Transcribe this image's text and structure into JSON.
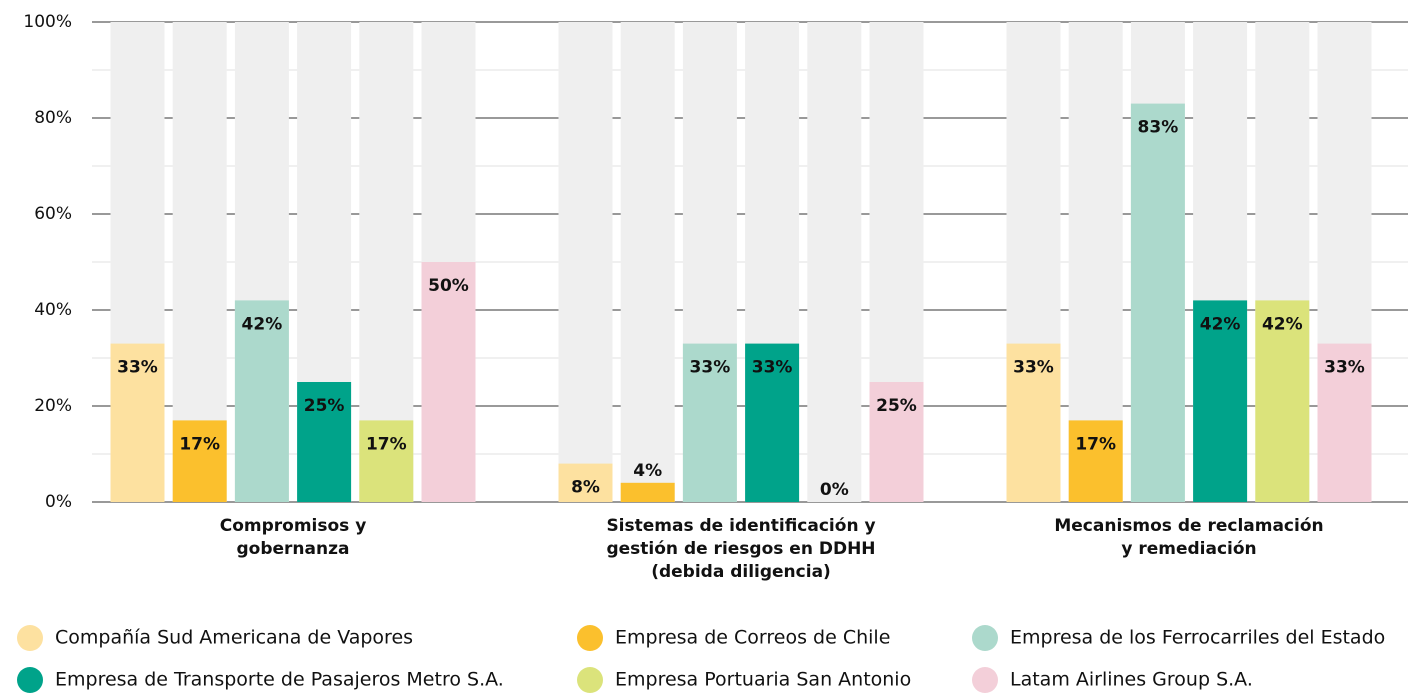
{
  "chart_data": {
    "type": "bar",
    "categories": [
      "Compromisos y\ngobernanza",
      "Sistemas de identificación y\ngestión de riesgos en DDHH\n(debida diligencia)",
      "Mecanismos de reclamación\ny remediación"
    ],
    "series": [
      {
        "name": "Compañía Sud Americana de Vapores",
        "color": "#fde1a0",
        "values": [
          33,
          8,
          33
        ],
        "value_labels": [
          "33%",
          "8%",
          "33%"
        ]
      },
      {
        "name": "Empresa de Correos de Chile",
        "color": "#fbc02d",
        "values": [
          17,
          4,
          17
        ],
        "value_labels": [
          "17%",
          "4%",
          "17%"
        ]
      },
      {
        "name": "Empresa de los Ferrocarriles del Estado",
        "color": "#acd9cc",
        "values": [
          42,
          33,
          83
        ],
        "value_labels": [
          "42%",
          "33%",
          "83%"
        ]
      },
      {
        "name": "Empresa de Transporte de Pasajeros Metro S.A.",
        "color": "#00a38a",
        "values": [
          25,
          33,
          42
        ],
        "value_labels": [
          "25%",
          "33%",
          "42%"
        ]
      },
      {
        "name": "Empresa Portuaria San Antonio",
        "color": "#dbe37b",
        "values": [
          17,
          0,
          42
        ],
        "value_labels": [
          "17%",
          "0%",
          "42%"
        ]
      },
      {
        "name": "Latam Airlines Group S.A.",
        "color": "#f3cfd9",
        "values": [
          50,
          25,
          33
        ],
        "value_labels": [
          "50%",
          "25%",
          "33%"
        ]
      }
    ],
    "ylim": [
      0,
      100
    ],
    "yticks": [
      {
        "value": 0,
        "label": "0%"
      },
      {
        "value": 20,
        "label": "20%"
      },
      {
        "value": 40,
        "label": "40%"
      },
      {
        "value": 60,
        "label": "60%"
      },
      {
        "value": 80,
        "label": "80%"
      },
      {
        "value": 100,
        "label": "100%"
      }
    ],
    "grid": true
  }
}
